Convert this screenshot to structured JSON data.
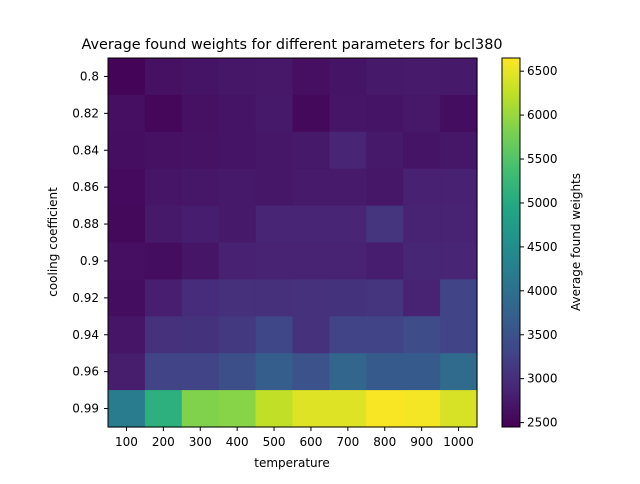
{
  "chart_data": {
    "type": "heatmap",
    "title": "Average found weights for different parameters for bcl380",
    "xlabel": "temperature",
    "ylabel": "cooling coefficient",
    "x_categories": [
      "100",
      "200",
      "300",
      "400",
      "500",
      "600",
      "700",
      "800",
      "900",
      "1000"
    ],
    "y_categories": [
      "0.8",
      "0.82",
      "0.84",
      "0.86",
      "0.88",
      "0.9",
      "0.92",
      "0.94",
      "0.96",
      "0.99"
    ],
    "values": [
      [
        2500,
        2640,
        2680,
        2710,
        2720,
        2620,
        2680,
        2740,
        2750,
        2740
      ],
      [
        2620,
        2520,
        2640,
        2680,
        2740,
        2540,
        2690,
        2680,
        2720,
        2590
      ],
      [
        2610,
        2640,
        2650,
        2680,
        2700,
        2740,
        2880,
        2740,
        2680,
        2700
      ],
      [
        2560,
        2690,
        2700,
        2740,
        2700,
        2750,
        2750,
        2710,
        2830,
        2830
      ],
      [
        2540,
        2740,
        2790,
        2740,
        2880,
        2880,
        2880,
        3080,
        2850,
        2850
      ],
      [
        2620,
        2600,
        2690,
        2830,
        2850,
        2860,
        2850,
        2790,
        2900,
        2880
      ],
      [
        2590,
        2800,
        2980,
        3020,
        3020,
        3040,
        3060,
        3090,
        2860,
        3300
      ],
      [
        2690,
        3040,
        3060,
        3150,
        3330,
        3040,
        3300,
        3300,
        3410,
        3300
      ],
      [
        2780,
        3300,
        3300,
        3460,
        3700,
        3500,
        3820,
        3630,
        3630,
        3900
      ],
      [
        4200,
        5100,
        5850,
        5900,
        6250,
        6450,
        6450,
        6620,
        6600,
        6400
      ]
    ],
    "colorbar": {
      "label": "Average found weights",
      "colormap": "viridis",
      "range": [
        2450,
        6650
      ],
      "ticks": [
        "2500",
        "3000",
        "3500",
        "4000",
        "4500",
        "5000",
        "5500",
        "6000",
        "6500"
      ]
    }
  }
}
